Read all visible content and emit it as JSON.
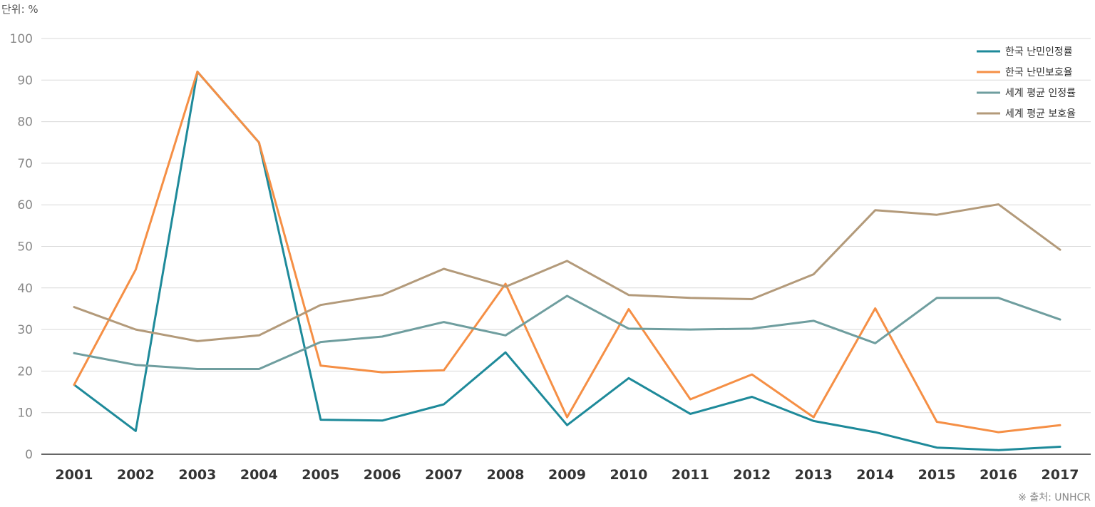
{
  "unit_label": "단위: %",
  "source_label": "※ 출처: UNHCR",
  "chart_data": {
    "type": "line",
    "x": [
      "2001",
      "2002",
      "2003",
      "2004",
      "2005",
      "2006",
      "2007",
      "2008",
      "2009",
      "2010",
      "2011",
      "2012",
      "2013",
      "2014",
      "2015",
      "2016",
      "2017"
    ],
    "ylim": [
      0,
      100
    ],
    "yticks": [
      0,
      10,
      20,
      30,
      40,
      50,
      60,
      70,
      80,
      90,
      100
    ],
    "grid": true,
    "legend_position": "top-right",
    "series": [
      {
        "name": "한국 난민인정률",
        "color": "#1e8a9a",
        "values": [
          16.7,
          5.6,
          92.0,
          75.0,
          8.3,
          8.1,
          12.0,
          24.5,
          7.0,
          18.3,
          9.7,
          13.8,
          8.0,
          5.3,
          1.6,
          1.0,
          1.8
        ]
      },
      {
        "name": "한국 난민보호율",
        "color": "#f58f45",
        "values": [
          16.7,
          44.4,
          92.0,
          75.0,
          21.3,
          19.7,
          20.2,
          41.0,
          8.9,
          34.9,
          13.2,
          19.2,
          8.9,
          35.1,
          7.8,
          5.3,
          7.0
        ]
      },
      {
        "name": "세계 평균 인정률",
        "color": "#6f9e9f",
        "values": [
          24.3,
          21.5,
          20.5,
          20.5,
          27.0,
          28.3,
          31.8,
          28.6,
          38.1,
          30.2,
          30.0,
          30.2,
          32.1,
          26.7,
          37.6,
          37.6,
          32.4
        ]
      },
      {
        "name": "세계 평균 보호율",
        "color": "#b39a7a",
        "values": [
          35.4,
          30.0,
          27.2,
          28.6,
          35.9,
          38.3,
          44.6,
          40.3,
          46.5,
          38.3,
          37.6,
          37.3,
          43.3,
          58.7,
          57.6,
          60.1,
          49.2
        ]
      }
    ]
  }
}
